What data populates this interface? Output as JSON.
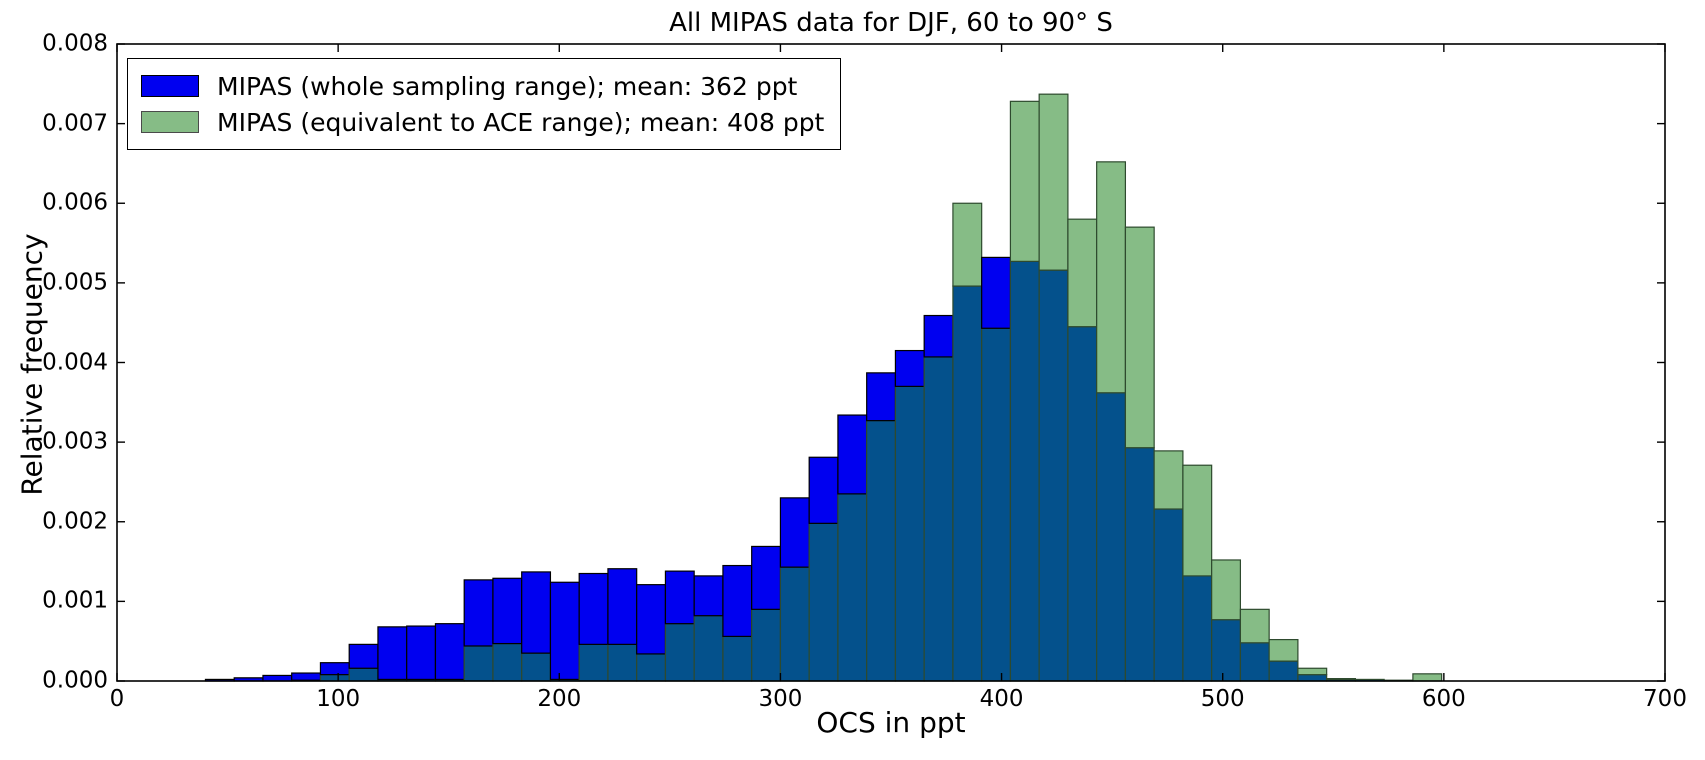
{
  "title": "All MIPAS data for DJF, 60 to 90° S",
  "xlabel": "OCS in ppt",
  "ylabel": "Relative frequency",
  "legend": {
    "items": [
      {
        "label": "MIPAS (whole sampling range); mean: 362 ppt",
        "swatch_color": "#0000f0",
        "swatch_edge": "#000000"
      },
      {
        "label": "MIPAS (equivalent to ACE range); mean: 408 ppt",
        "swatch_color": "#86bc86",
        "swatch_edge": "#4a4a4a"
      }
    ]
  },
  "colors": {
    "blue_series": "#0000f0",
    "green_series": "#86bc86",
    "overlap": "#04518c",
    "blue_edge": "#000000",
    "green_edge": "#2e4a2e",
    "axis": "#000000"
  },
  "chart_data": {
    "type": "histogram",
    "title": "All MIPAS data for DJF, 60 to 90° S",
    "xlabel": "OCS in ppt",
    "ylabel": "Relative frequency",
    "xlim": [
      0,
      700
    ],
    "ylim": [
      0,
      0.008
    ],
    "grid": false,
    "legend_position": "upper left",
    "xtick_labels": [
      "0",
      "100",
      "200",
      "300",
      "400",
      "500",
      "600",
      "700"
    ],
    "ytick_labels": [
      "0.000",
      "0.001",
      "0.002",
      "0.003",
      "0.004",
      "0.005",
      "0.006",
      "0.007",
      "0.008"
    ],
    "bin_width_ppt": 13,
    "bin_edges": [
      40,
      53,
      66,
      79,
      92,
      105,
      118,
      131,
      144,
      157,
      170,
      183,
      196,
      209,
      222,
      235,
      248,
      261,
      274,
      287,
      300,
      313,
      326,
      339,
      352,
      365,
      378,
      391,
      404,
      417,
      430,
      443,
      456,
      469,
      482,
      495,
      508,
      521,
      534,
      547,
      560,
      573,
      586,
      599
    ],
    "series": [
      {
        "name": "MIPAS (whole sampling range)",
        "mean_ppt": 362,
        "values": [
          2e-05,
          4e-05,
          7e-05,
          0.0001,
          0.00023,
          0.00046,
          0.00068,
          0.00069,
          0.00072,
          0.00127,
          0.00129,
          0.00137,
          0.00124,
          0.00135,
          0.00141,
          0.00121,
          0.00138,
          0.00132,
          0.00145,
          0.00169,
          0.0023,
          0.00281,
          0.00334,
          0.00387,
          0.00415,
          0.00459,
          0.00496,
          0.00532,
          0.00527,
          0.00516,
          0.00445,
          0.00362,
          0.00293,
          0.00216,
          0.00132,
          0.00077,
          0.00048,
          0.00025,
          8e-05,
          2e-05,
          2e-05,
          1e-05,
          0.0
        ]
      },
      {
        "name": "MIPAS (equivalent to ACE range)",
        "mean_ppt": 408,
        "values": [
          0.0,
          0.0,
          0.0,
          1e-05,
          8e-05,
          0.00016,
          2e-05,
          2e-05,
          2e-05,
          0.00044,
          0.00047,
          0.00035,
          2e-05,
          0.00046,
          0.00046,
          0.00034,
          0.00072,
          0.00082,
          0.00056,
          0.0009,
          0.00143,
          0.00198,
          0.00235,
          0.00327,
          0.0037,
          0.00407,
          0.006,
          0.00443,
          0.00728,
          0.00737,
          0.0058,
          0.00652,
          0.0057,
          0.00289,
          0.00271,
          0.00152,
          0.0009,
          0.00052,
          0.00016,
          3e-05,
          2e-05,
          1e-05,
          9e-05
        ]
      }
    ]
  }
}
